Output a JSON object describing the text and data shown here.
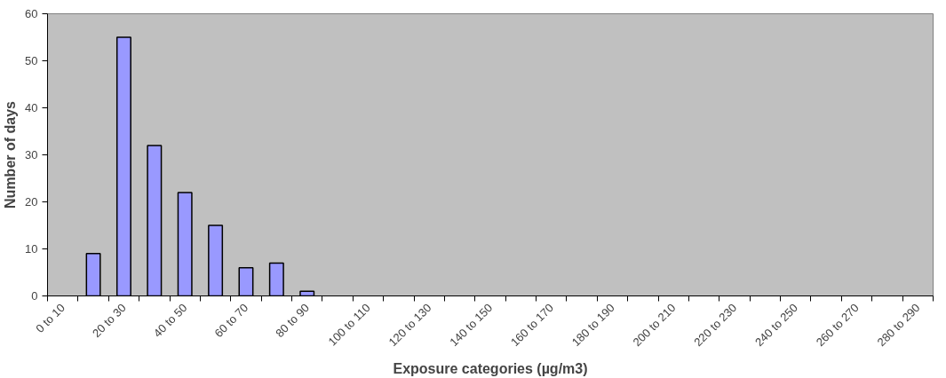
{
  "chart_data": {
    "type": "bar",
    "xlabel": "Exposure categories (µg/m3)",
    "ylabel": "Number of days",
    "categories": [
      "0 to 10",
      null,
      "20 to 30",
      null,
      "40 to 50",
      null,
      "60 to 70",
      null,
      "80 to 90",
      null,
      "100 to 110",
      null,
      "120 to 130",
      null,
      "140 to 150",
      null,
      "160 to 170",
      null,
      "180 to 190",
      null,
      "200 to 210",
      null,
      "220 to 230",
      null,
      "240 to 250",
      null,
      "260 to 270",
      null,
      "280 to 290"
    ],
    "values": [
      0,
      9,
      55,
      32,
      22,
      15,
      6,
      7,
      1,
      0,
      0,
      0,
      0,
      0,
      0,
      0,
      0,
      0,
      0,
      0,
      0,
      0,
      0,
      0,
      0,
      0,
      0,
      0,
      0
    ],
    "color": "#9999ff",
    "ylim": [
      0,
      60
    ],
    "yticks": [
      0,
      10,
      20,
      30,
      40,
      50,
      60
    ],
    "grid": false
  }
}
